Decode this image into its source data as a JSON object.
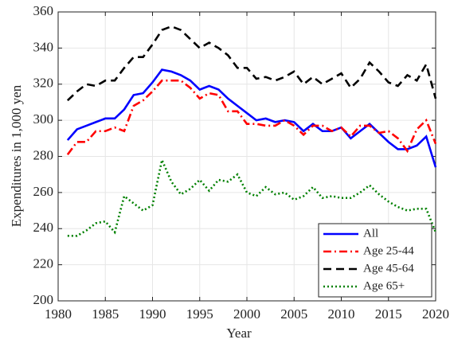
{
  "chart_data": {
    "type": "line",
    "xlabel": "Year",
    "ylabel": "Expenditures in 1,000 yen",
    "x": [
      1981,
      1982,
      1983,
      1984,
      1985,
      1986,
      1987,
      1988,
      1989,
      1990,
      1991,
      1992,
      1993,
      1994,
      1995,
      1996,
      1997,
      1998,
      1999,
      2000,
      2001,
      2002,
      2003,
      2004,
      2005,
      2006,
      2007,
      2008,
      2009,
      2010,
      2011,
      2012,
      2013,
      2014,
      2015,
      2016,
      2017,
      2018,
      2019,
      2020
    ],
    "series": [
      {
        "name": "All",
        "color": "#0000ff",
        "linestyle": "solid",
        "values": [
          289,
          295,
          297,
          299,
          301,
          301,
          306,
          314,
          315,
          321,
          328,
          327,
          325,
          322,
          317,
          319,
          317,
          312,
          308,
          304,
          300,
          301,
          299,
          300,
          299,
          294,
          298,
          294,
          294,
          296,
          290,
          294,
          298,
          293,
          288,
          284,
          284,
          286,
          291,
          274
        ]
      },
      {
        "name": "Age 25-44",
        "color": "#ff0000",
        "linestyle": "dashdot",
        "values": [
          281,
          288,
          288,
          294,
          294,
          296,
          294,
          308,
          311,
          316,
          322,
          322,
          322,
          318,
          312,
          315,
          314,
          305,
          305,
          298,
          298,
          297,
          297,
          300,
          297,
          292,
          297,
          297,
          294,
          296,
          291,
          297,
          297,
          293,
          294,
          290,
          283,
          295,
          300,
          287
        ]
      },
      {
        "name": "Age 45-64",
        "color": "#000000",
        "linestyle": "dashed",
        "values": [
          311,
          316,
          320,
          319,
          322,
          322,
          329,
          335,
          335,
          342,
          350,
          352,
          350,
          345,
          340,
          343,
          340,
          336,
          329,
          329,
          323,
          324,
          322,
          324,
          327,
          320,
          324,
          320,
          323,
          326,
          318,
          323,
          332,
          327,
          321,
          319,
          325,
          322,
          331,
          312
        ]
      },
      {
        "name": "Age 65+",
        "color": "#008000",
        "linestyle": "dotted",
        "values": [
          236,
          236,
          239,
          243,
          244,
          238,
          258,
          254,
          250,
          253,
          278,
          266,
          259,
          262,
          267,
          261,
          267,
          266,
          270,
          260,
          258,
          263,
          259,
          260,
          256,
          258,
          263,
          257,
          258,
          257,
          257,
          260,
          264,
          259,
          255,
          252,
          250,
          251,
          251,
          238
        ]
      }
    ],
    "xlim": [
      1980,
      2020
    ],
    "xticks": [
      1980,
      1985,
      1990,
      1995,
      2000,
      2005,
      2010,
      2015,
      2020
    ],
    "ylim": [
      200,
      360
    ],
    "yticks": [
      200,
      220,
      240,
      260,
      280,
      300,
      320,
      340,
      360
    ],
    "grid": true,
    "legend": "lower right"
  }
}
